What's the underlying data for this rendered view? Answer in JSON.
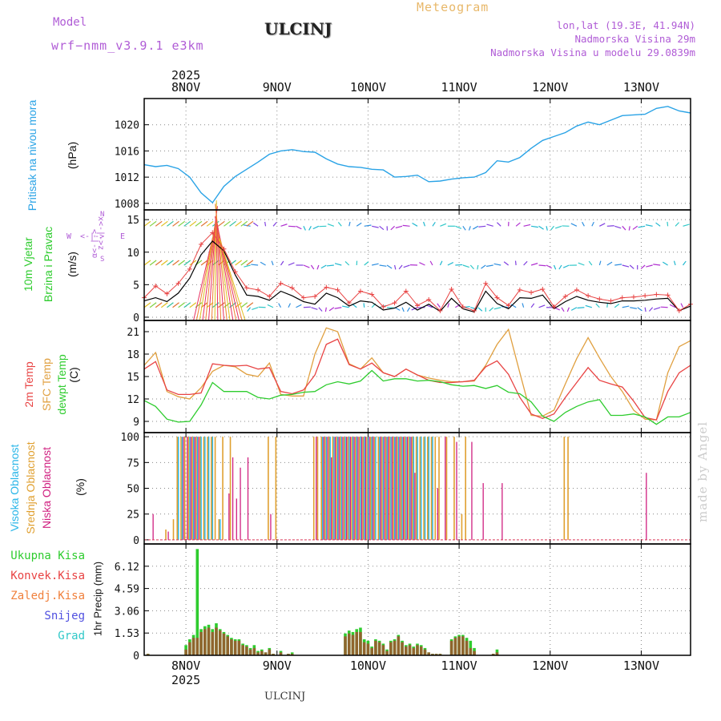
{
  "header": {
    "model_label": "Model",
    "model_run": "wrf−nmm_v3.9.1 e3km",
    "station": "ULCINJ",
    "title": "Meteogram",
    "lonlat": "lon,lat (19.3E, 41.94N)",
    "elevation": "Nadmorska Visina 29m",
    "model_elevation": "Nadmorska Visina u modelu 29.0839m"
  },
  "footer": {
    "station": "ULCINJ",
    "credit": "made by Angel"
  },
  "colors": {
    "pressure": "#2aa3e6",
    "temp2m": "#e84343",
    "sfc": "#e0a040",
    "dewpt": "#2ecc2e",
    "cloud_high": "#29b6e8",
    "cloud_mid": "#e0a030",
    "cloud_low": "#d02080",
    "precip_total": "#2ecc2e",
    "precip_conv": "#a0522d",
    "grid": "#888888"
  },
  "chart_data": [
    {
      "type": "line",
      "panel": "pressure",
      "ylabel_main": "Pritisak na nivou mora",
      "ylabel_unit": "(hPa)",
      "ylim": [
        1007,
        1024
      ],
      "yticks": [
        1008,
        1012,
        1016,
        1020
      ],
      "xlim": [
        0,
        144
      ],
      "x_top_labels": [
        "8NOV",
        "9NOV",
        "10NOV",
        "11NOV",
        "12NOV",
        "13NOV"
      ],
      "x_top_year": "2025",
      "x": [
        0,
        3,
        6,
        9,
        12,
        15,
        18,
        21,
        24,
        27,
        30,
        33,
        36,
        39,
        42,
        45,
        48,
        51,
        54,
        57,
        60,
        63,
        66,
        69,
        72,
        75,
        78,
        81,
        84,
        87,
        90,
        93,
        96,
        99,
        102,
        105,
        108,
        111,
        114,
        117,
        120,
        123,
        126,
        129,
        132,
        135,
        138,
        141,
        144
      ],
      "series": [
        {
          "name": "MSLP",
          "values": [
            1013.9,
            1013.6,
            1013.8,
            1013.3,
            1012.0,
            1009.6,
            1008.1,
            1010.6,
            1012.1,
            1013.2,
            1014.3,
            1015.5,
            1016.0,
            1016.2,
            1015.9,
            1015.8,
            1014.8,
            1014.0,
            1013.6,
            1013.5,
            1013.2,
            1013.1,
            1012.0,
            1012.1,
            1012.3,
            1011.3,
            1011.4,
            1011.7,
            1011.9,
            1012.0,
            1012.7,
            1014.5,
            1014.3,
            1015.0,
            1016.4,
            1017.6,
            1018.2,
            1018.8,
            1019.8,
            1020.4,
            1020.0,
            1020.7,
            1021.4,
            1021.5,
            1021.6,
            1022.5,
            1022.8,
            1022.1,
            1021.8
          ]
        }
      ]
    },
    {
      "type": "line",
      "panel": "wind",
      "ylabel_main": "10m Vjetar",
      "ylabel_sub": "Brzina i Pravac",
      "ylabel_unit": "(m/s)",
      "compass_w": "W",
      "compass_e": "E",
      "compass_n": "N",
      "compass_s": "S",
      "compass_x": "x<-|->z",
      "compass_y": "α<-|->",
      "ylim": [
        -0.5,
        16.5
      ],
      "yticks": [
        0,
        5,
        10,
        15
      ],
      "x": [
        0,
        3,
        6,
        9,
        12,
        15,
        18,
        21,
        24,
        27,
        30,
        33,
        36,
        39,
        42,
        45,
        48,
        51,
        54,
        57,
        60,
        63,
        66,
        69,
        72,
        75,
        78,
        81,
        84,
        87,
        90,
        93,
        96,
        99,
        102,
        105,
        108,
        111,
        114,
        117,
        120,
        123,
        126,
        129,
        132,
        135,
        138,
        141,
        144
      ],
      "series": [
        {
          "name": "gust",
          "values": [
            3.0,
            4.8,
            3.6,
            5.2,
            7.4,
            11.2,
            13.0,
            10.5,
            7.0,
            4.5,
            4.2,
            3.2,
            5.2,
            4.5,
            3.0,
            3.2,
            4.6,
            4.2,
            2.2,
            4.0,
            3.5,
            1.6,
            2.2,
            4.0,
            1.8,
            2.7,
            1.0,
            4.3,
            1.6,
            1.0,
            5.2,
            3.0,
            1.8,
            4.2,
            3.8,
            4.3,
            1.6,
            3.2,
            4.2,
            3.3,
            2.8,
            2.5,
            3.0,
            3.1,
            3.3,
            3.5,
            3.4,
            1.0,
            2.0
          ]
        },
        {
          "name": "speed",
          "values": [
            2.5,
            3.0,
            2.4,
            3.7,
            6.0,
            9.6,
            11.7,
            10.2,
            6.5,
            3.4,
            3.2,
            2.6,
            4.0,
            3.3,
            2.4,
            2.0,
            3.7,
            3.0,
            1.7,
            2.5,
            2.3,
            1.1,
            1.4,
            2.3,
            1.1,
            2.0,
            0.9,
            2.9,
            1.3,
            0.8,
            4.0,
            2.1,
            1.3,
            3.0,
            2.9,
            3.4,
            1.3,
            2.4,
            3.2,
            2.6,
            2.3,
            2.1,
            2.5,
            2.5,
            2.6,
            2.8,
            2.9,
            1.0,
            1.7
          ]
        }
      ],
      "arrow_rows": [
        1.5,
        8.0,
        14.0
      ]
    },
    {
      "type": "line",
      "panel": "temperature",
      "ylabel_a": "2m Temp",
      "ylabel_b": "SFC Temp",
      "ylabel_c": "dewpt Temp",
      "ylabel_unit": "(C)",
      "ylim": [
        7.5,
        22.5
      ],
      "yticks": [
        9,
        12,
        15,
        18,
        21
      ],
      "x": [
        0,
        3,
        6,
        9,
        12,
        15,
        18,
        21,
        24,
        27,
        30,
        33,
        36,
        39,
        42,
        45,
        48,
        51,
        54,
        57,
        60,
        63,
        66,
        69,
        72,
        75,
        78,
        81,
        84,
        87,
        90,
        93,
        96,
        99,
        102,
        105,
        108,
        111,
        114,
        117,
        120,
        123,
        126,
        129,
        132,
        135,
        138,
        141,
        144
      ],
      "series": [
        {
          "name": "2m Temp",
          "values": [
            16.0,
            17.0,
            13.2,
            12.6,
            12.6,
            12.8,
            16.7,
            16.5,
            16.4,
            16.5,
            16.0,
            16.2,
            13.0,
            12.7,
            13.2,
            15.2,
            19.3,
            20.0,
            16.6,
            16.0,
            16.8,
            15.5,
            15.0,
            16.0,
            15.2,
            14.5,
            14.2,
            14.2,
            14.3,
            14.5,
            16.3,
            17.1,
            15.3,
            12.2,
            10.0,
            9.4,
            10.0,
            12.2,
            14.2,
            16.2,
            14.5,
            14.0,
            13.6,
            11.7,
            9.5,
            9.2,
            13.0,
            15.5,
            16.5
          ]
        },
        {
          "name": "SFC Temp",
          "values": [
            16.5,
            18.2,
            13.0,
            12.3,
            12.0,
            13.5,
            15.7,
            16.5,
            16.3,
            15.3,
            15.0,
            16.8,
            12.6,
            12.4,
            12.4,
            18.0,
            21.5,
            21.0,
            16.7,
            16.0,
            17.5,
            15.5,
            15.0,
            16.0,
            15.2,
            14.8,
            14.5,
            14.3,
            14.3,
            14.4,
            16.5,
            19.3,
            21.3,
            15.5,
            9.8,
            9.7,
            10.5,
            14.0,
            17.4,
            20.2,
            17.5,
            15.0,
            13.0,
            10.5,
            9.3,
            9.2,
            15.5,
            19.0,
            19.8
          ]
        },
        {
          "name": "dewpt Temp",
          "values": [
            11.8,
            11.0,
            9.3,
            8.9,
            9.0,
            11.2,
            14.2,
            13.0,
            13.0,
            13.0,
            12.2,
            12.0,
            12.5,
            12.6,
            12.9,
            13.0,
            13.9,
            14.3,
            14.0,
            14.4,
            15.8,
            14.4,
            14.7,
            14.7,
            14.4,
            14.5,
            14.3,
            13.9,
            13.7,
            13.8,
            13.4,
            13.8,
            12.9,
            12.7,
            11.6,
            9.7,
            9.0,
            10.2,
            11.0,
            11.6,
            11.9,
            9.8,
            9.8,
            10.0,
            9.6,
            8.6,
            9.6,
            9.6,
            10.2
          ]
        }
      ]
    },
    {
      "type": "bar",
      "panel": "cloud",
      "ylabel_a": "Visoka Oblacnost",
      "ylabel_b": "Srednja Oblacnost",
      "ylabel_c": "Niska Oblacnost",
      "ylabel_unit": "(%)",
      "ylim": [
        -4,
        104
      ],
      "yticks": [
        0,
        25,
        50,
        75,
        100
      ],
      "x": [
        2,
        6,
        8,
        9,
        10,
        11,
        12,
        13,
        14,
        15,
        16,
        17,
        18,
        19,
        20,
        21,
        22,
        23,
        24,
        25,
        27,
        29,
        31,
        33,
        35,
        37,
        38,
        45,
        46,
        47,
        48,
        49,
        50,
        51,
        52,
        53,
        54,
        55,
        56,
        57,
        58,
        59,
        60,
        61,
        62,
        63,
        64,
        65,
        66,
        67,
        68,
        69,
        70,
        71,
        72,
        73,
        74,
        75,
        76,
        77,
        78,
        79,
        80,
        81,
        82,
        84,
        85,
        86,
        87,
        89,
        94,
        111,
        112,
        132
      ],
      "series": [
        {
          "name": "high",
          "values": [
            0,
            0,
            0,
            100,
            100,
            0,
            100,
            100,
            100,
            100,
            100,
            100,
            100,
            0,
            20,
            0,
            0,
            0,
            0,
            0,
            0,
            0,
            0,
            0,
            0,
            0,
            0,
            0,
            0,
            100,
            100,
            100,
            100,
            100,
            100,
            100,
            100,
            100,
            100,
            100,
            100,
            100,
            100,
            100,
            100,
            100,
            100,
            100,
            100,
            100,
            100,
            100,
            100,
            100,
            100,
            100,
            100,
            100,
            100,
            0,
            0,
            0,
            0,
            0,
            0,
            0,
            0,
            0,
            0,
            0,
            0,
            0,
            0,
            0
          ]
        },
        {
          "name": "mid",
          "values": [
            0,
            10,
            20,
            100,
            100,
            100,
            100,
            100,
            100,
            100,
            100,
            100,
            100,
            100,
            20,
            100,
            0,
            100,
            0,
            0,
            0,
            0,
            0,
            100,
            100,
            0,
            0,
            100,
            100,
            100,
            100,
            100,
            100,
            100,
            100,
            100,
            100,
            100,
            100,
            100,
            100,
            100,
            100,
            100,
            100,
            100,
            100,
            100,
            100,
            100,
            100,
            100,
            100,
            100,
            100,
            100,
            100,
            100,
            100,
            100,
            100,
            0,
            100,
            0,
            100,
            25,
            100,
            0,
            0,
            0,
            0,
            100,
            100,
            0
          ]
        },
        {
          "name": "low",
          "values": [
            25,
            8,
            0,
            0,
            100,
            100,
            100,
            100,
            100,
            0,
            0,
            0,
            0,
            0,
            0,
            0,
            45,
            80,
            40,
            70,
            80,
            0,
            0,
            25,
            0,
            0,
            0,
            100,
            0,
            100,
            100,
            80,
            100,
            100,
            100,
            100,
            100,
            100,
            100,
            100,
            100,
            100,
            100,
            0,
            100,
            100,
            100,
            100,
            100,
            100,
            100,
            100,
            100,
            65,
            0,
            0,
            0,
            0,
            0,
            50,
            0,
            100,
            0,
            0,
            95,
            0,
            0,
            95,
            0,
            55,
            55,
            0,
            0,
            65
          ]
        }
      ]
    },
    {
      "type": "bar",
      "panel": "precip",
      "ylabel_unit": "1hr Precip (mm)",
      "legend": [
        "Ukupna Kisa",
        "Konvek.Kisa",
        "Zaledj.Kisa",
        "Snijeg",
        "Grad"
      ],
      "legend_colors": [
        "#2ecc2e",
        "#e84343",
        "#f0803c",
        "#5050e0",
        "#30c8c8"
      ],
      "ylim": [
        0,
        7.65
      ],
      "yticks": [
        0,
        1.53,
        3.06,
        4.59,
        6.12
      ],
      "ytick_labels": [
        "0",
        "1.53",
        "3.06",
        "4.59",
        "6.12"
      ],
      "x_bottom_labels": [
        "8NOV",
        "9NOV",
        "10NOV",
        "11NOV",
        "12NOV",
        "13NOV"
      ],
      "x_bottom_year": "2025",
      "x": [
        1,
        11,
        12,
        13,
        14,
        15,
        16,
        17,
        18,
        19,
        20,
        21,
        22,
        23,
        24,
        25,
        26,
        27,
        28,
        29,
        30,
        31,
        32,
        33,
        34,
        36,
        38,
        39,
        53,
        54,
        55,
        56,
        57,
        58,
        59,
        60,
        61,
        62,
        63,
        64,
        65,
        66,
        67,
        68,
        69,
        70,
        71,
        72,
        73,
        74,
        75,
        76,
        77,
        78,
        81,
        82,
        83,
        84,
        85,
        86,
        87,
        92,
        93
      ],
      "series": [
        {
          "name": "total",
          "values": [
            0.1,
            0.7,
            1.1,
            1.4,
            7.3,
            1.8,
            2.0,
            2.1,
            1.8,
            2.2,
            1.8,
            1.6,
            1.4,
            1.2,
            1.1,
            1.1,
            0.8,
            0.7,
            0.5,
            0.7,
            0.3,
            0.4,
            0.2,
            0.5,
            0.1,
            0.3,
            0.1,
            0.2,
            1.5,
            1.7,
            1.6,
            1.8,
            1.9,
            1.1,
            1.0,
            0.6,
            1.1,
            1.0,
            0.8,
            0.4,
            1.0,
            1.1,
            1.4,
            1.0,
            0.7,
            0.8,
            0.6,
            0.8,
            0.7,
            0.5,
            0.2,
            0.1,
            0.1,
            0.1,
            1.1,
            1.3,
            1.4,
            1.4,
            1.2,
            1.0,
            0.5,
            0.1,
            0.4
          ]
        },
        {
          "name": "convective",
          "values": [
            0.1,
            0.4,
            0.9,
            1.2,
            1.2,
            1.6,
            1.8,
            1.9,
            1.6,
            1.9,
            1.7,
            1.5,
            1.3,
            1.1,
            1.0,
            1.0,
            0.7,
            0.6,
            0.4,
            0.5,
            0.2,
            0.3,
            0.2,
            0.4,
            0.1,
            0.2,
            0.1,
            0.1,
            1.3,
            1.5,
            1.4,
            1.6,
            1.6,
            0.9,
            0.8,
            0.5,
            1.0,
            0.9,
            0.7,
            0.3,
            0.9,
            1.0,
            1.3,
            0.9,
            0.6,
            0.7,
            0.5,
            0.7,
            0.6,
            0.4,
            0.2,
            0.1,
            0.1,
            0.1,
            1.0,
            1.2,
            1.3,
            1.3,
            1.0,
            0.5,
            0.3,
            0.1,
            0.2
          ]
        }
      ]
    }
  ]
}
